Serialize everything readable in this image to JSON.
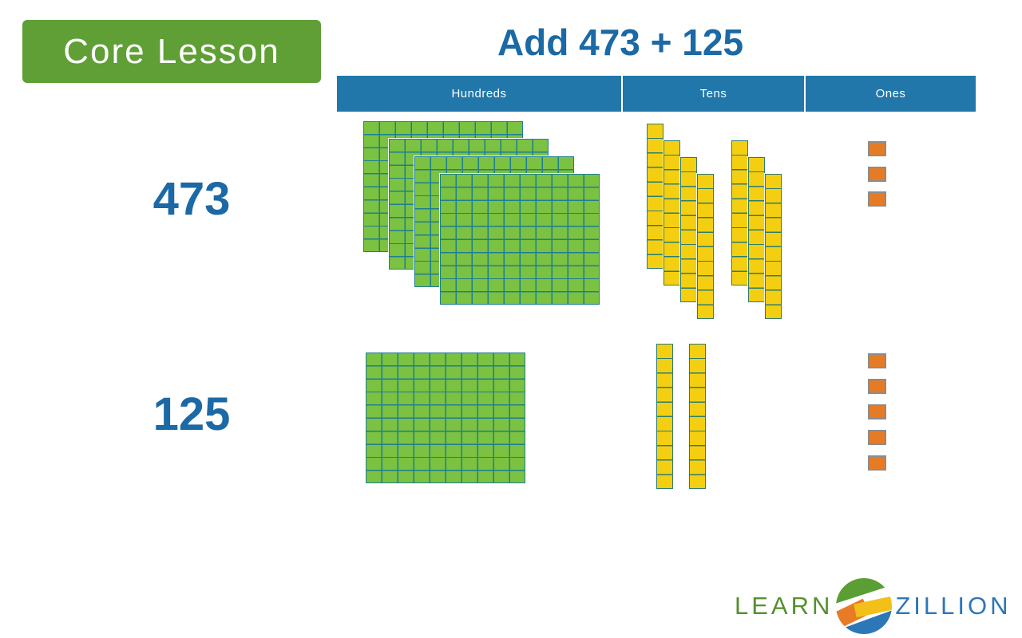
{
  "badge": {
    "label": "Core Lesson",
    "bg": "#5f9f35"
  },
  "title": "Add 473 + 125",
  "table": {
    "columns": [
      "Hundreds",
      "Tens",
      "Ones"
    ],
    "header_bg": "#2177a9"
  },
  "rows": [
    {
      "label": "473",
      "hundreds": 4,
      "tens": 7,
      "ones": 3,
      "tens_groups": [
        4,
        3
      ]
    },
    {
      "label": "125",
      "hundreds": 1,
      "tens": 2,
      "ones": 5,
      "tens_groups": [
        2
      ]
    }
  ],
  "blocks": {
    "hundred_fill": "#7bc142",
    "hundred_grid": "#1e7f90",
    "ten_fill": "#f4cf11",
    "ten_border": "#2c7d6d",
    "one_fill": "#e67b25",
    "one_border": "#8c8c8c"
  },
  "logo": {
    "learn": "LEARN",
    "zillion": "ZILLION",
    "learn_color": "#55902e",
    "zillion_color": "#2d77b8",
    "globe_colors": {
      "green": "#5b9e33",
      "orange": "#e87b25",
      "yellow": "#f2c018",
      "blue": "#2d77b8"
    }
  },
  "colors": {
    "title_blue": "#1b69a5"
  }
}
